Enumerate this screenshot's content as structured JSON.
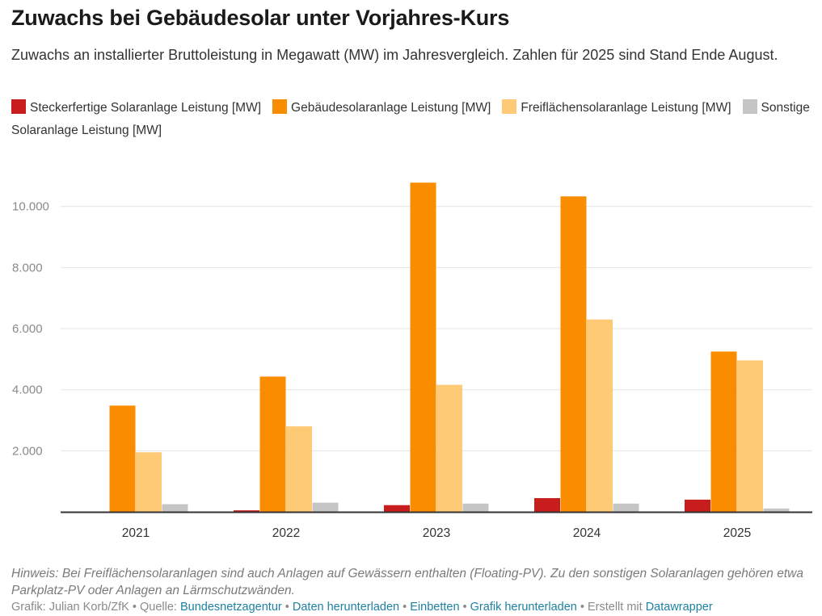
{
  "title": "Zuwachs bei Gebäudesolar unter Vorjahres-Kurs",
  "subtitle": "Zuwachs an installierter Bruttoleistung in Megawatt (MW) im Jahresvergleich. Zahlen für 2025 sind Stand Ende August.",
  "note": "Hinweis: Bei Freiflächensolaranlagen sind auch Anlagen auf Gewässern enthalten (Floating-PV). Zu den sonstigen Solaranlagen gehören etwa Parkplatz-PV oder Anlagen an Lärmschutzwänden.",
  "footer": {
    "prefix": "Grafik: Julian Korb/ZfK • Quelle: ",
    "source": "Bundesnetzagentur",
    "sep1": " • ",
    "download": "Daten herunterladen",
    "sep2": " • ",
    "embed": "Einbetten",
    "sep3": "  • ",
    "graphic": "Grafik herunterladen",
    "sep4": " • Erstellt mit ",
    "tool": "Datawrapper"
  },
  "chart_data": {
    "type": "bar",
    "categories": [
      "2021",
      "2022",
      "2023",
      "2024",
      "2025"
    ],
    "series": [
      {
        "name": "Steckerfertige Solaranlage Leistung [MW]",
        "color": "#c71e1d",
        "values": [
          0,
          50,
          220,
          450,
          400
        ]
      },
      {
        "name": "Gebäudesolaranlage Leistung [MW]",
        "color": "#fa8c00",
        "values": [
          3480,
          4430,
          10780,
          10330,
          5250
        ]
      },
      {
        "name": "Freiflächensolaranlage Leistung [MW]",
        "color": "#ffca76",
        "values": [
          1950,
          2800,
          4160,
          6300,
          4960
        ]
      },
      {
        "name": "Sonstige Solaranlage Leistung [MW]",
        "color": "#c5c5c5",
        "values": [
          250,
          300,
          270,
          270,
          110
        ]
      }
    ],
    "yticks": [
      {
        "value": 2000,
        "label": "2.000"
      },
      {
        "value": 4000,
        "label": "4.000"
      },
      {
        "value": 6000,
        "label": "6.000"
      },
      {
        "value": 8000,
        "label": "8.000"
      },
      {
        "value": 10000,
        "label": "10.000"
      }
    ],
    "ylim": [
      0,
      11500
    ],
    "grid": true,
    "legend_position": "top-left"
  }
}
